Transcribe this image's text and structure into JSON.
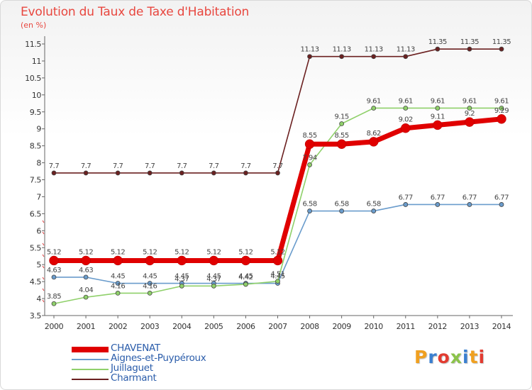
{
  "header": {
    "title": "Evolution du Taux de Taxe d'Habitation",
    "unit": "(en %)"
  },
  "logo": {
    "text": "Proxiti",
    "colors": [
      "#f0a020",
      "#3a7fd0",
      "#e23b30",
      "#8bc34a",
      "#3a7fd0",
      "#f0a020",
      "#e23b30"
    ]
  },
  "chart_data": {
    "type": "line",
    "title": "Evolution du Taux de Taxe d'Habitation",
    "ylabel": "(en %)",
    "xlabel": "",
    "x": [
      "2000",
      "2001",
      "2002",
      "2003",
      "2004",
      "2005",
      "2006",
      "2007",
      "2008",
      "2009",
      "2010",
      "2011",
      "2012",
      "2013",
      "2014"
    ],
    "ylim": [
      3.5,
      11.5
    ],
    "yticks": [
      "3.5",
      "4",
      "4.5",
      "5",
      "5.5",
      "6",
      "6.5",
      "7",
      "7.5",
      "8",
      "8.5",
      "9",
      "9.5",
      "10",
      "10.5",
      "11",
      "11.5"
    ],
    "grid": false,
    "legend_position": "bottom-left",
    "series": [
      {
        "name": "Charmant",
        "color": "#6b2020",
        "values": [
          7.7,
          7.7,
          7.7,
          7.7,
          7.7,
          7.7,
          7.7,
          7.7,
          11.13,
          11.13,
          11.13,
          11.13,
          11.35,
          11.35,
          11.35
        ],
        "labels": [
          "7.7",
          "7.7",
          "7.7",
          "7.7",
          "7.7",
          "7.7",
          "7.7",
          "7.7",
          "11.13",
          "11.13",
          "11.13",
          "11.13",
          "11.35",
          "11.35",
          "11.35"
        ]
      },
      {
        "name": "Aignes-et-Puypéroux",
        "color": "#6a9ccc",
        "values": [
          4.63,
          4.63,
          4.45,
          4.45,
          4.45,
          4.45,
          4.45,
          4.45,
          6.58,
          6.58,
          6.58,
          6.77,
          6.77,
          6.77,
          6.77
        ],
        "labels": [
          "4.63",
          "4.63",
          "4.45",
          "4.45",
          "4.45",
          "4.45",
          "4.45",
          "4.45",
          "6.58",
          "6.58",
          "6.58",
          "6.77",
          "6.77",
          "6.77",
          "6.77"
        ]
      },
      {
        "name": "Juillaguet",
        "color": "#8fd06a",
        "values": [
          3.85,
          4.04,
          4.16,
          4.16,
          4.37,
          4.37,
          4.42,
          4.51,
          7.94,
          9.15,
          9.61,
          9.61,
          9.61,
          9.61,
          9.61
        ],
        "labels": [
          "3.85",
          "4.04",
          "4.16",
          "4.16",
          "4.37",
          "4.37",
          "4.42",
          "4.51",
          "7.94",
          "9.15",
          "9.61",
          "9.61",
          "9.61",
          "9.61",
          "9.61"
        ]
      },
      {
        "name": "CHAVENAT",
        "color": "#e00000",
        "values": [
          5.12,
          5.12,
          5.12,
          5.12,
          5.12,
          5.12,
          5.12,
          5.12,
          8.55,
          8.55,
          8.62,
          9.02,
          9.11,
          9.2,
          9.29
        ],
        "labels": [
          "5.12",
          "5.12",
          "5.12",
          "5.12",
          "5.12",
          "5.12",
          "5.12",
          "5.12",
          "8.55",
          "8.55",
          "8.62",
          "9.02",
          "9.11",
          "9.2",
          "9.29"
        ]
      }
    ],
    "legend": [
      "CHAVENAT",
      "Aignes-et-Puypéroux",
      "Juillaguet",
      "Charmant"
    ]
  }
}
